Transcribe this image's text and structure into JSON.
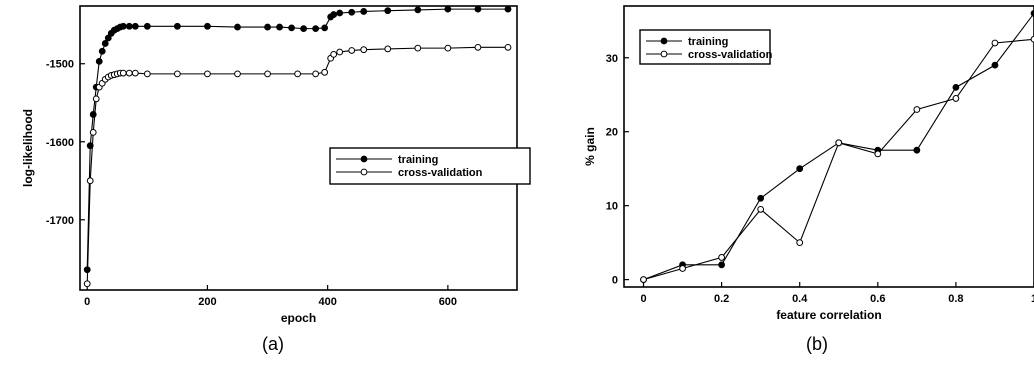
{
  "chart_data": [
    {
      "panel_label": "(a)",
      "type": "line",
      "xlabel": "epoch",
      "ylabel": "log-likelihood",
      "xlim": [
        -12,
        715
      ],
      "ylim": [
        -1790,
        -1426
      ],
      "xticks": [
        0,
        200,
        400,
        600
      ],
      "xtick_labels": [
        "0",
        "200",
        "400",
        "600"
      ],
      "yticks": [
        -1500,
        -1600,
        -1700
      ],
      "ytick_labels": [
        "-1500",
        "-1600",
        "-1700"
      ],
      "grid": false,
      "legend_position": "center-right",
      "series": [
        {
          "name": "training",
          "marker": "filled-circle",
          "x": [
            0,
            5,
            10,
            15,
            20,
            25,
            30,
            35,
            40,
            45,
            50,
            55,
            60,
            70,
            80,
            100,
            150,
            200,
            250,
            300,
            320,
            340,
            360,
            380,
            395,
            405,
            410,
            420,
            440,
            460,
            500,
            550,
            600,
            650,
            700
          ],
          "values": [
            -1764,
            -1605,
            -1565,
            -1530,
            -1497,
            -1484,
            -1474,
            -1467,
            -1461,
            -1457,
            -1455,
            -1453,
            -1452,
            -1452,
            -1452,
            -1452,
            -1452,
            -1452,
            -1453,
            -1453,
            -1453,
            -1454,
            -1455,
            -1455,
            -1454,
            -1440,
            -1437,
            -1435,
            -1434,
            -1433,
            -1432,
            -1431,
            -1430,
            -1430,
            -1430
          ]
        },
        {
          "name": "cross-validation",
          "marker": "open-circle",
          "x": [
            0,
            5,
            10,
            15,
            20,
            25,
            30,
            35,
            40,
            45,
            50,
            55,
            60,
            70,
            80,
            100,
            150,
            200,
            250,
            300,
            350,
            380,
            395,
            405,
            410,
            420,
            440,
            460,
            500,
            550,
            600,
            650,
            700
          ],
          "values": [
            -1782,
            -1650,
            -1588,
            -1545,
            -1530,
            -1525,
            -1520,
            -1517,
            -1515,
            -1514,
            -1513,
            -1512,
            -1512,
            -1512,
            -1512,
            -1513,
            -1513,
            -1513,
            -1513,
            -1513,
            -1513,
            -1513,
            -1511,
            -1493,
            -1488,
            -1485,
            -1483,
            -1482,
            -1481,
            -1480,
            -1480,
            -1479,
            -1479
          ]
        }
      ]
    },
    {
      "panel_label": "(b)",
      "type": "line",
      "xlabel": "feature correlation",
      "ylabel": "% gain",
      "xlim": [
        -0.05,
        1.0
      ],
      "ylim": [
        -1,
        37
      ],
      "xticks": [
        0,
        0.2,
        0.4,
        0.6,
        0.8,
        1.0
      ],
      "xtick_labels": [
        "0",
        "0.2",
        "0.4",
        "0.6",
        "0.8",
        "1"
      ],
      "yticks": [
        0,
        10,
        20,
        30
      ],
      "ytick_labels": [
        "0",
        "10",
        "20",
        "30"
      ],
      "grid": false,
      "legend_position": "top-left",
      "series": [
        {
          "name": "training",
          "marker": "filled-circle",
          "x": [
            0,
            0.1,
            0.2,
            0.3,
            0.4,
            0.5,
            0.6,
            0.7,
            0.8,
            0.9,
            1.0
          ],
          "values": [
            0,
            2,
            2,
            11,
            15,
            18.5,
            17.5,
            17.5,
            26,
            29,
            36
          ]
        },
        {
          "name": "cross-validation",
          "marker": "open-circle",
          "x": [
            0,
            0.1,
            0.2,
            0.3,
            0.4,
            0.5,
            0.6,
            0.7,
            0.8,
            0.9,
            1.0
          ],
          "values": [
            0,
            1.5,
            3,
            9.5,
            5,
            18.5,
            17,
            23,
            24.5,
            32,
            32.5
          ]
        }
      ]
    }
  ]
}
